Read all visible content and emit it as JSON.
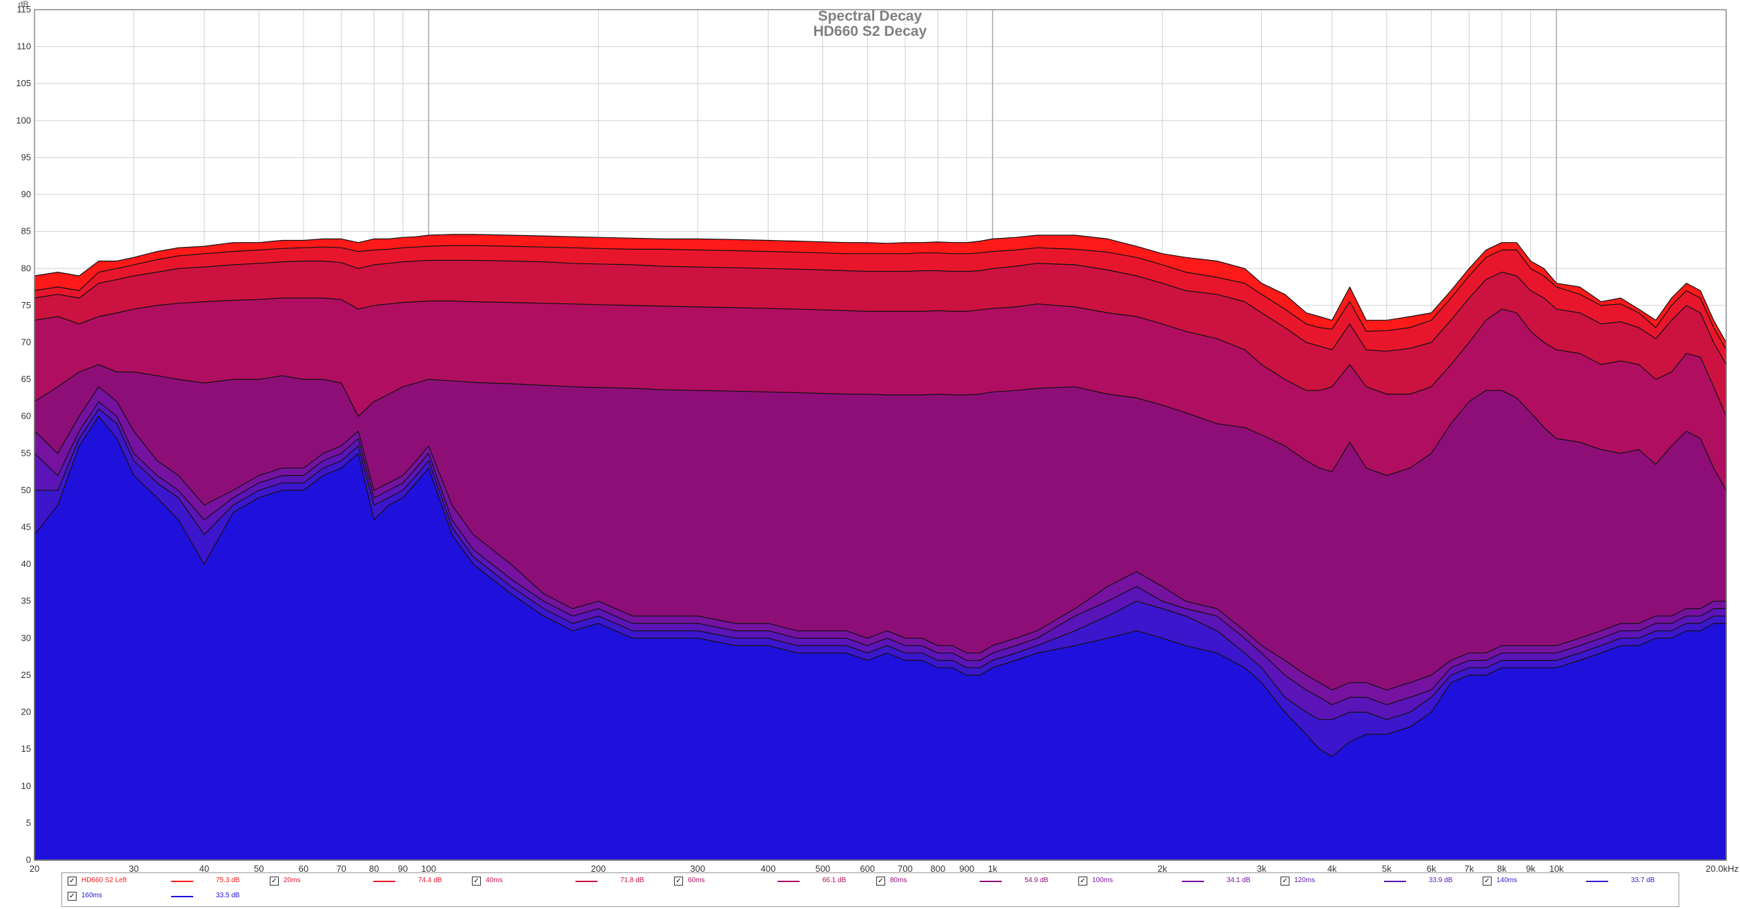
{
  "chart_data": {
    "type": "area",
    "title": "Spectral Decay",
    "subtitle": "HD660 S2 Decay",
    "ylabel": "dB",
    "xscale": "log",
    "xlim": [
      20,
      20000
    ],
    "ylim": [
      0,
      115
    ],
    "grid": true,
    "y_ticks": [
      "0",
      "5",
      "10",
      "15",
      "20",
      "25",
      "30",
      "35",
      "40",
      "45",
      "50",
      "55",
      "60",
      "65",
      "70",
      "75",
      "80",
      "85",
      "90",
      "95",
      "100",
      "105",
      "110",
      "115"
    ],
    "x_ticks": [
      {
        "v": 20,
        "l": "20"
      },
      {
        "v": 30,
        "l": "30"
      },
      {
        "v": 40,
        "l": "40"
      },
      {
        "v": 50,
        "l": "50"
      },
      {
        "v": 60,
        "l": "60"
      },
      {
        "v": 70,
        "l": "70"
      },
      {
        "v": 80,
        "l": "80"
      },
      {
        "v": 90,
        "l": "90"
      },
      {
        "v": 100,
        "l": "100"
      },
      {
        "v": 200,
        "l": "200"
      },
      {
        "v": 300,
        "l": "300"
      },
      {
        "v": 400,
        "l": "400"
      },
      {
        "v": 500,
        "l": "500"
      },
      {
        "v": 600,
        "l": "600"
      },
      {
        "v": 700,
        "l": "700"
      },
      {
        "v": 800,
        "l": "800"
      },
      {
        "v": 900,
        "l": "900"
      },
      {
        "v": 1000,
        "l": "1k"
      },
      {
        "v": 2000,
        "l": "2k"
      },
      {
        "v": 3000,
        "l": "3k"
      },
      {
        "v": 4000,
        "l": "4k"
      },
      {
        "v": 5000,
        "l": "5k"
      },
      {
        "v": 6000,
        "l": "6k"
      },
      {
        "v": 7000,
        "l": "7k"
      },
      {
        "v": 8000,
        "l": "8k"
      },
      {
        "v": 9000,
        "l": "9k"
      },
      {
        "v": 10000,
        "l": "10k"
      },
      {
        "v": 20000,
        "l": "20.0kHz"
      }
    ],
    "x": [
      20,
      22,
      24,
      26,
      28,
      30,
      33,
      36,
      40,
      45,
      50,
      55,
      60,
      65,
      70,
      75,
      80,
      85,
      90,
      95,
      100,
      110,
      120,
      140,
      160,
      180,
      200,
      230,
      260,
      300,
      350,
      400,
      450,
      500,
      550,
      600,
      650,
      700,
      750,
      800,
      850,
      900,
      950,
      1000,
      1100,
      1200,
      1400,
      1600,
      1800,
      2000,
      2200,
      2500,
      2800,
      3000,
      3300,
      3600,
      3800,
      4000,
      4300,
      4600,
      5000,
      5500,
      6000,
      6500,
      7000,
      7500,
      8000,
      8500,
      9000,
      9500,
      10000,
      11000,
      12000,
      13000,
      14000,
      15000,
      16000,
      17000,
      18000,
      19000,
      20000
    ],
    "series": [
      {
        "name": "HD660 S2 Left",
        "legend_value": "75.3 dB",
        "color": "#ff1a1a",
        "values": [
          79,
          79.5,
          79,
          81,
          81,
          81.5,
          82.3,
          82.8,
          83,
          83.5,
          83.5,
          83.8,
          83.8,
          84,
          84,
          83.5,
          84,
          84,
          84.2,
          84.3,
          84.5,
          84.6,
          84.6,
          84.5,
          84.4,
          84.3,
          84.2,
          84.1,
          84,
          84,
          83.9,
          83.8,
          83.7,
          83.6,
          83.5,
          83.5,
          83.4,
          83.5,
          83.5,
          83.6,
          83.5,
          83.5,
          83.7,
          84,
          84.2,
          84.5,
          84.5,
          84,
          83,
          82,
          81.5,
          81,
          80,
          78,
          76.5,
          74,
          73.5,
          73,
          77.5,
          73,
          73,
          73.5,
          74,
          77,
          80,
          82.5,
          83.5,
          83.5,
          81,
          80,
          78,
          77.5,
          75.5,
          76,
          74.5,
          73,
          76,
          78,
          77,
          73,
          70
        ]
      },
      {
        "name": "20ms",
        "legend_value": "74.4 dB",
        "color": "#e8162c",
        "values": [
          77,
          77.5,
          77,
          79.5,
          80,
          80.5,
          81.2,
          81.7,
          82,
          82.3,
          82.5,
          82.7,
          82.8,
          82.9,
          82.8,
          82.3,
          82.5,
          82.6,
          82.8,
          82.9,
          83,
          83.1,
          83.1,
          83,
          82.9,
          82.8,
          82.7,
          82.6,
          82.6,
          82.5,
          82.4,
          82.3,
          82.2,
          82.1,
          82,
          82,
          82,
          82,
          82.1,
          82.1,
          82,
          82,
          82.1,
          82.3,
          82.5,
          82.8,
          82.6,
          82.2,
          81.5,
          80.5,
          79.5,
          78.8,
          78,
          76.5,
          74.5,
          72.5,
          72,
          71.8,
          75.5,
          71.5,
          71.6,
          72,
          73,
          76,
          79,
          81.5,
          82.5,
          82.5,
          80,
          79,
          77.5,
          76.5,
          75,
          75.2,
          74,
          72,
          75,
          77,
          76,
          72,
          69
        ]
      },
      {
        "name": "40ms",
        "legend_value": "71.8 dB",
        "color": "#cc1240",
        "values": [
          76,
          76.5,
          76,
          78,
          78.5,
          79,
          79.5,
          80,
          80.2,
          80.5,
          80.7,
          80.9,
          81,
          81,
          80.8,
          80,
          80.5,
          80.7,
          80.9,
          81,
          81.1,
          81.1,
          81.1,
          81,
          80.9,
          80.7,
          80.6,
          80.5,
          80.3,
          80.2,
          80.1,
          80,
          79.9,
          79.8,
          79.7,
          79.6,
          79.6,
          79.6,
          79.7,
          79.7,
          79.6,
          79.6,
          79.7,
          80,
          80.3,
          80.7,
          80.5,
          79.8,
          79,
          78,
          77,
          76.5,
          75.5,
          74,
          72,
          70,
          69.5,
          69,
          72.5,
          69,
          68.8,
          69.2,
          70,
          73,
          76,
          78.5,
          79.5,
          79,
          77,
          76,
          74.5,
          74,
          72.5,
          72.8,
          72,
          70.5,
          73,
          75,
          74,
          70,
          67
        ]
      },
      {
        "name": "60ms",
        "legend_value": "66.1 dB",
        "color": "#b00e60",
        "values": [
          73,
          73.5,
          72.5,
          73.5,
          74,
          74.5,
          75,
          75.3,
          75.5,
          75.7,
          75.8,
          76,
          76,
          76,
          75.8,
          74.5,
          75,
          75.2,
          75.4,
          75.5,
          75.6,
          75.6,
          75.5,
          75.4,
          75.3,
          75.2,
          75.1,
          75,
          74.9,
          74.8,
          74.7,
          74.6,
          74.5,
          74.4,
          74.3,
          74.2,
          74.2,
          74.2,
          74.2,
          74.3,
          74.2,
          74.2,
          74.4,
          74.6,
          74.8,
          75.2,
          74.8,
          74,
          73.5,
          72.5,
          71.5,
          70.5,
          69,
          67,
          65,
          63.5,
          63.5,
          64,
          67,
          64,
          63,
          63,
          64,
          67,
          70,
          73,
          74.5,
          74,
          71.5,
          70,
          69,
          68.5,
          67,
          67.5,
          67,
          65,
          66,
          68.5,
          68,
          64,
          60
        ]
      },
      {
        "name": "80ms",
        "legend_value": "54.9 dB",
        "color": "#8e0e78",
        "values": [
          62,
          64,
          66,
          67,
          66,
          66,
          65.5,
          65,
          64.5,
          65,
          65,
          65.5,
          65,
          65,
          64.5,
          60,
          62,
          63,
          64,
          64.5,
          65,
          64.8,
          64.6,
          64.4,
          64.2,
          64,
          63.9,
          63.8,
          63.6,
          63.5,
          63.4,
          63.3,
          63.2,
          63.1,
          63,
          63,
          62.9,
          62.9,
          62.9,
          63,
          62.9,
          62.9,
          63,
          63.3,
          63.5,
          63.8,
          64,
          63,
          62.5,
          61.5,
          60.5,
          59,
          58.5,
          57.5,
          56,
          54,
          53,
          52.5,
          56.5,
          53,
          52,
          53,
          55,
          59,
          62,
          63.5,
          63.5,
          62.5,
          60.5,
          58.5,
          57,
          56.5,
          55.5,
          55,
          55.5,
          53.5,
          56,
          58,
          57,
          53,
          50
        ]
      },
      {
        "name": "100ms",
        "legend_value": "34.1 dB",
        "color": "#7612a0",
        "values": [
          58,
          55,
          60,
          64,
          62,
          58,
          54,
          52,
          48,
          50,
          52,
          53,
          53,
          55,
          56,
          58,
          50,
          51,
          52,
          54,
          56,
          48,
          44,
          40,
          36,
          34,
          35,
          33,
          33,
          33,
          32,
          32,
          31,
          31,
          31,
          30,
          31,
          30,
          30,
          29,
          29,
          28,
          28,
          29,
          30,
          31,
          34,
          37,
          39,
          37,
          35,
          34,
          31,
          29,
          27,
          25,
          24,
          23,
          24,
          24,
          23,
          24,
          25,
          27,
          28,
          28,
          29,
          29,
          29,
          29,
          29,
          30,
          31,
          32,
          32,
          33,
          33,
          34,
          34,
          35,
          35
        ]
      },
      {
        "name": "120ms",
        "legend_value": "33.9 dB",
        "color": "#5a14b8",
        "values": [
          55,
          52,
          58,
          62,
          60,
          55,
          52,
          50,
          46,
          49,
          51,
          52,
          52,
          54,
          55,
          57,
          49,
          50,
          51,
          53,
          55,
          46,
          42,
          38,
          35,
          33,
          34,
          32,
          32,
          32,
          31,
          31,
          30,
          30,
          30,
          29,
          30,
          29,
          29,
          28,
          28,
          27,
          27,
          28,
          29,
          30,
          33,
          35,
          37,
          35,
          34,
          33,
          30,
          28,
          25,
          23,
          22,
          21,
          22,
          22,
          21,
          22,
          23,
          26,
          27,
          27,
          28,
          28,
          28,
          28,
          28,
          29,
          30,
          31,
          31,
          32,
          32,
          33,
          33,
          34,
          34
        ]
      },
      {
        "name": "140ms",
        "legend_value": "33.7 dB",
        "color": "#3c16cc",
        "values": [
          50,
          50,
          57,
          61,
          59,
          54,
          51,
          49,
          44,
          48,
          50,
          51,
          51,
          53,
          54,
          56,
          48,
          49,
          50,
          52,
          54,
          45,
          41,
          37,
          34,
          32,
          33,
          31,
          31,
          31,
          30,
          30,
          29,
          29,
          29,
          28,
          29,
          28,
          28,
          27,
          27,
          26,
          26,
          27,
          28,
          29,
          31,
          33,
          35,
          34,
          33,
          31,
          28,
          26,
          22,
          20,
          19,
          19,
          20,
          20,
          19,
          20,
          22,
          25,
          26,
          26,
          27,
          27,
          27,
          27,
          27,
          28,
          29,
          30,
          30,
          31,
          31,
          32,
          32,
          33,
          33
        ]
      },
      {
        "name": "160ms",
        "legend_value": "33.5 dB",
        "color": "#2010dc",
        "values": [
          44,
          48,
          56,
          60,
          57,
          52,
          49,
          46,
          40,
          47,
          49,
          50,
          50,
          52,
          53,
          55,
          46,
          48,
          49,
          51,
          53,
          44,
          40,
          36,
          33,
          31,
          32,
          30,
          30,
          30,
          29,
          29,
          28,
          28,
          28,
          27,
          28,
          27,
          27,
          26,
          26,
          25,
          25,
          26,
          27,
          28,
          29,
          30,
          31,
          30,
          29,
          28,
          26,
          24,
          20,
          17,
          15,
          14,
          16,
          17,
          17,
          18,
          20,
          24,
          25,
          25,
          26,
          26,
          26,
          26,
          26,
          27,
          28,
          29,
          29,
          30,
          30,
          31,
          31,
          32,
          32
        ]
      }
    ]
  }
}
